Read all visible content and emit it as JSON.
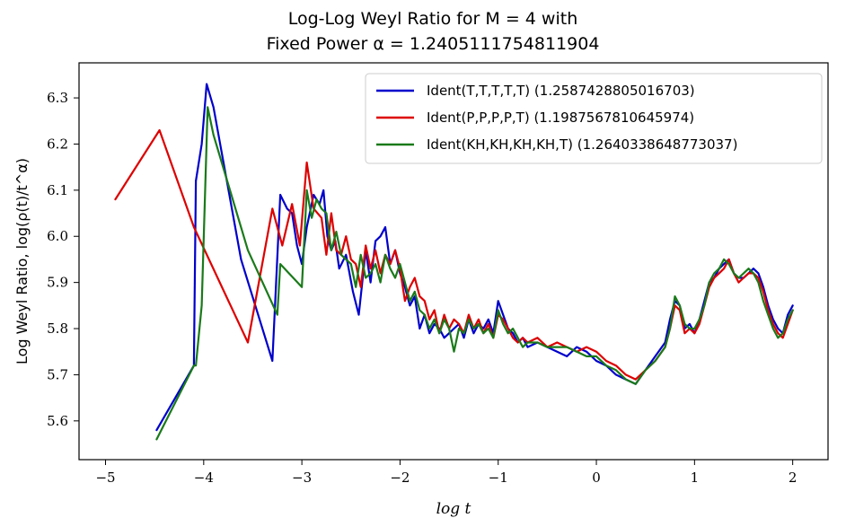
{
  "chart_data": {
    "type": "line",
    "title_line1": "Log-Log Weyl Ratio for M = 4 with",
    "title_line2": "Fixed Power α = 1.2405111754811904",
    "xlabel": "log t",
    "ylabel": "Log Weyl Ratio, log(ρ(t)/t^α)",
    "xlim": [
      -5.27,
      2.36
    ],
    "ylim": [
      5.516,
      6.376
    ],
    "xticks": [
      -5,
      -4,
      -3,
      -2,
      -1,
      0,
      1,
      2
    ],
    "xtick_labels": [
      "−5",
      "−4",
      "−3",
      "−2",
      "−1",
      "0",
      "1",
      "2"
    ],
    "yticks": [
      5.6,
      5.7,
      5.8,
      5.9,
      6.0,
      6.1,
      6.2,
      6.3
    ],
    "ytick_labels": [
      "5.6",
      "5.7",
      "5.8",
      "5.9",
      "6.0",
      "6.1",
      "6.2",
      "6.3"
    ],
    "legend_position": "top-right",
    "series": [
      {
        "name": "Ident(T,T,T,T,T) (1.2587428805016703)",
        "color": "#0000cc",
        "x": [
          -4.48,
          -4.1,
          -4.08,
          -4.02,
          -3.97,
          -3.9,
          -3.62,
          -3.3,
          -3.22,
          -3.15,
          -3.1,
          -3.05,
          -3.0,
          -2.95,
          -2.88,
          -2.82,
          -2.78,
          -2.74,
          -2.7,
          -2.66,
          -2.62,
          -2.55,
          -2.48,
          -2.42,
          -2.35,
          -2.3,
          -2.25,
          -2.2,
          -2.15,
          -2.1,
          -2.05,
          -2.0,
          -1.95,
          -1.9,
          -1.85,
          -1.8,
          -1.75,
          -1.7,
          -1.65,
          -1.6,
          -1.55,
          -1.5,
          -1.45,
          -1.4,
          -1.35,
          -1.3,
          -1.25,
          -1.2,
          -1.15,
          -1.1,
          -1.05,
          -1.0,
          -0.95,
          -0.9,
          -0.85,
          -0.8,
          -0.75,
          -0.7,
          -0.6,
          -0.5,
          -0.4,
          -0.3,
          -0.2,
          -0.1,
          0.0,
          0.1,
          0.2,
          0.3,
          0.4,
          0.5,
          0.6,
          0.7,
          0.75,
          0.8,
          0.85,
          0.9,
          0.95,
          1.0,
          1.05,
          1.1,
          1.15,
          1.2,
          1.25,
          1.3,
          1.35,
          1.4,
          1.45,
          1.5,
          1.55,
          1.6,
          1.65,
          1.7,
          1.75,
          1.8,
          1.85,
          1.9,
          1.95,
          2.0
        ],
        "y": [
          5.58,
          5.72,
          6.12,
          6.2,
          6.33,
          6.28,
          5.95,
          5.73,
          6.09,
          6.06,
          6.05,
          5.98,
          5.94,
          6.02,
          6.09,
          6.07,
          6.1,
          6.0,
          5.97,
          5.99,
          5.93,
          5.96,
          5.88,
          5.83,
          5.97,
          5.9,
          5.99,
          6.0,
          6.02,
          5.94,
          5.97,
          5.92,
          5.89,
          5.85,
          5.87,
          5.8,
          5.83,
          5.79,
          5.81,
          5.8,
          5.78,
          5.79,
          5.8,
          5.81,
          5.78,
          5.82,
          5.79,
          5.81,
          5.8,
          5.82,
          5.79,
          5.86,
          5.83,
          5.8,
          5.79,
          5.77,
          5.78,
          5.76,
          5.77,
          5.76,
          5.75,
          5.74,
          5.76,
          5.75,
          5.73,
          5.72,
          5.7,
          5.69,
          5.68,
          5.71,
          5.74,
          5.77,
          5.82,
          5.86,
          5.85,
          5.8,
          5.81,
          5.79,
          5.82,
          5.86,
          5.9,
          5.91,
          5.93,
          5.94,
          5.95,
          5.92,
          5.91,
          5.91,
          5.92,
          5.93,
          5.92,
          5.89,
          5.85,
          5.82,
          5.8,
          5.79,
          5.83,
          5.85
        ]
      },
      {
        "name": "Ident(P,P,P,P,T) (1.1987567810645974)",
        "color": "#dd0000",
        "x": [
          -4.9,
          -4.45,
          -4.1,
          -3.55,
          -3.3,
          -3.2,
          -3.1,
          -3.02,
          -2.95,
          -2.88,
          -2.8,
          -2.75,
          -2.7,
          -2.65,
          -2.6,
          -2.55,
          -2.5,
          -2.45,
          -2.4,
          -2.35,
          -2.3,
          -2.25,
          -2.2,
          -2.15,
          -2.1,
          -2.05,
          -2.0,
          -1.95,
          -1.9,
          -1.85,
          -1.8,
          -1.75,
          -1.7,
          -1.65,
          -1.6,
          -1.55,
          -1.5,
          -1.45,
          -1.4,
          -1.35,
          -1.3,
          -1.25,
          -1.2,
          -1.15,
          -1.1,
          -1.05,
          -1.0,
          -0.95,
          -0.9,
          -0.85,
          -0.8,
          -0.75,
          -0.7,
          -0.6,
          -0.5,
          -0.4,
          -0.3,
          -0.2,
          -0.1,
          0.0,
          0.1,
          0.2,
          0.3,
          0.4,
          0.5,
          0.6,
          0.7,
          0.75,
          0.8,
          0.85,
          0.9,
          0.95,
          1.0,
          1.05,
          1.1,
          1.15,
          1.2,
          1.25,
          1.3,
          1.35,
          1.4,
          1.45,
          1.5,
          1.55,
          1.6,
          1.65,
          1.7,
          1.75,
          1.8,
          1.85,
          1.9,
          1.95,
          2.0
        ],
        "y": [
          6.08,
          6.23,
          6.02,
          5.77,
          6.06,
          5.98,
          6.07,
          5.98,
          6.16,
          6.06,
          6.04,
          5.96,
          6.05,
          5.97,
          5.96,
          6.0,
          5.95,
          5.94,
          5.89,
          5.98,
          5.93,
          5.97,
          5.92,
          5.96,
          5.94,
          5.97,
          5.93,
          5.86,
          5.89,
          5.91,
          5.87,
          5.86,
          5.82,
          5.84,
          5.79,
          5.83,
          5.8,
          5.82,
          5.81,
          5.79,
          5.83,
          5.8,
          5.82,
          5.79,
          5.81,
          5.78,
          5.83,
          5.82,
          5.8,
          5.78,
          5.77,
          5.78,
          5.77,
          5.78,
          5.76,
          5.77,
          5.76,
          5.75,
          5.76,
          5.75,
          5.73,
          5.72,
          5.7,
          5.69,
          5.71,
          5.73,
          5.76,
          5.8,
          5.85,
          5.84,
          5.79,
          5.8,
          5.79,
          5.81,
          5.85,
          5.89,
          5.91,
          5.92,
          5.93,
          5.95,
          5.92,
          5.9,
          5.91,
          5.92,
          5.92,
          5.91,
          5.88,
          5.84,
          5.81,
          5.79,
          5.78,
          5.81,
          5.84
        ]
      },
      {
        "name": "Ident(KH,KH,KH,KH,T) (1.2640338648773037)",
        "color": "#1a7a1a",
        "x": [
          -4.48,
          -4.1,
          -4.08,
          -4.02,
          -3.96,
          -3.9,
          -3.55,
          -3.25,
          -3.22,
          -3.0,
          -2.95,
          -2.9,
          -2.85,
          -2.8,
          -2.75,
          -2.7,
          -2.65,
          -2.6,
          -2.55,
          -2.5,
          -2.45,
          -2.4,
          -2.35,
          -2.3,
          -2.25,
          -2.2,
          -2.15,
          -2.1,
          -2.05,
          -2.0,
          -1.95,
          -1.9,
          -1.85,
          -1.8,
          -1.75,
          -1.7,
          -1.65,
          -1.6,
          -1.55,
          -1.5,
          -1.45,
          -1.4,
          -1.35,
          -1.3,
          -1.25,
          -1.2,
          -1.15,
          -1.1,
          -1.05,
          -1.0,
          -0.95,
          -0.9,
          -0.85,
          -0.8,
          -0.75,
          -0.7,
          -0.6,
          -0.5,
          -0.4,
          -0.3,
          -0.2,
          -0.1,
          0.0,
          0.1,
          0.2,
          0.3,
          0.4,
          0.5,
          0.6,
          0.7,
          0.75,
          0.8,
          0.85,
          0.9,
          0.95,
          1.0,
          1.05,
          1.1,
          1.15,
          1.2,
          1.25,
          1.3,
          1.35,
          1.4,
          1.45,
          1.5,
          1.55,
          1.6,
          1.65,
          1.7,
          1.75,
          1.8,
          1.85,
          1.9,
          1.95,
          2.0
        ],
        "y": [
          5.56,
          5.72,
          5.72,
          5.85,
          6.28,
          6.22,
          5.97,
          5.83,
          5.94,
          5.89,
          6.1,
          6.04,
          6.08,
          6.06,
          6.05,
          5.97,
          6.01,
          5.96,
          5.95,
          5.94,
          5.89,
          5.96,
          5.91,
          5.92,
          5.94,
          5.9,
          5.96,
          5.93,
          5.91,
          5.94,
          5.9,
          5.86,
          5.88,
          5.84,
          5.83,
          5.8,
          5.82,
          5.79,
          5.82,
          5.8,
          5.75,
          5.8,
          5.79,
          5.82,
          5.8,
          5.81,
          5.79,
          5.8,
          5.78,
          5.84,
          5.81,
          5.79,
          5.8,
          5.78,
          5.76,
          5.77,
          5.77,
          5.76,
          5.76,
          5.76,
          5.75,
          5.74,
          5.74,
          5.72,
          5.71,
          5.69,
          5.68,
          5.71,
          5.73,
          5.76,
          5.8,
          5.87,
          5.85,
          5.81,
          5.8,
          5.8,
          5.82,
          5.85,
          5.9,
          5.92,
          5.93,
          5.95,
          5.94,
          5.92,
          5.91,
          5.92,
          5.93,
          5.92,
          5.9,
          5.86,
          5.83,
          5.8,
          5.78,
          5.79,
          5.82,
          5.84
        ]
      }
    ]
  }
}
